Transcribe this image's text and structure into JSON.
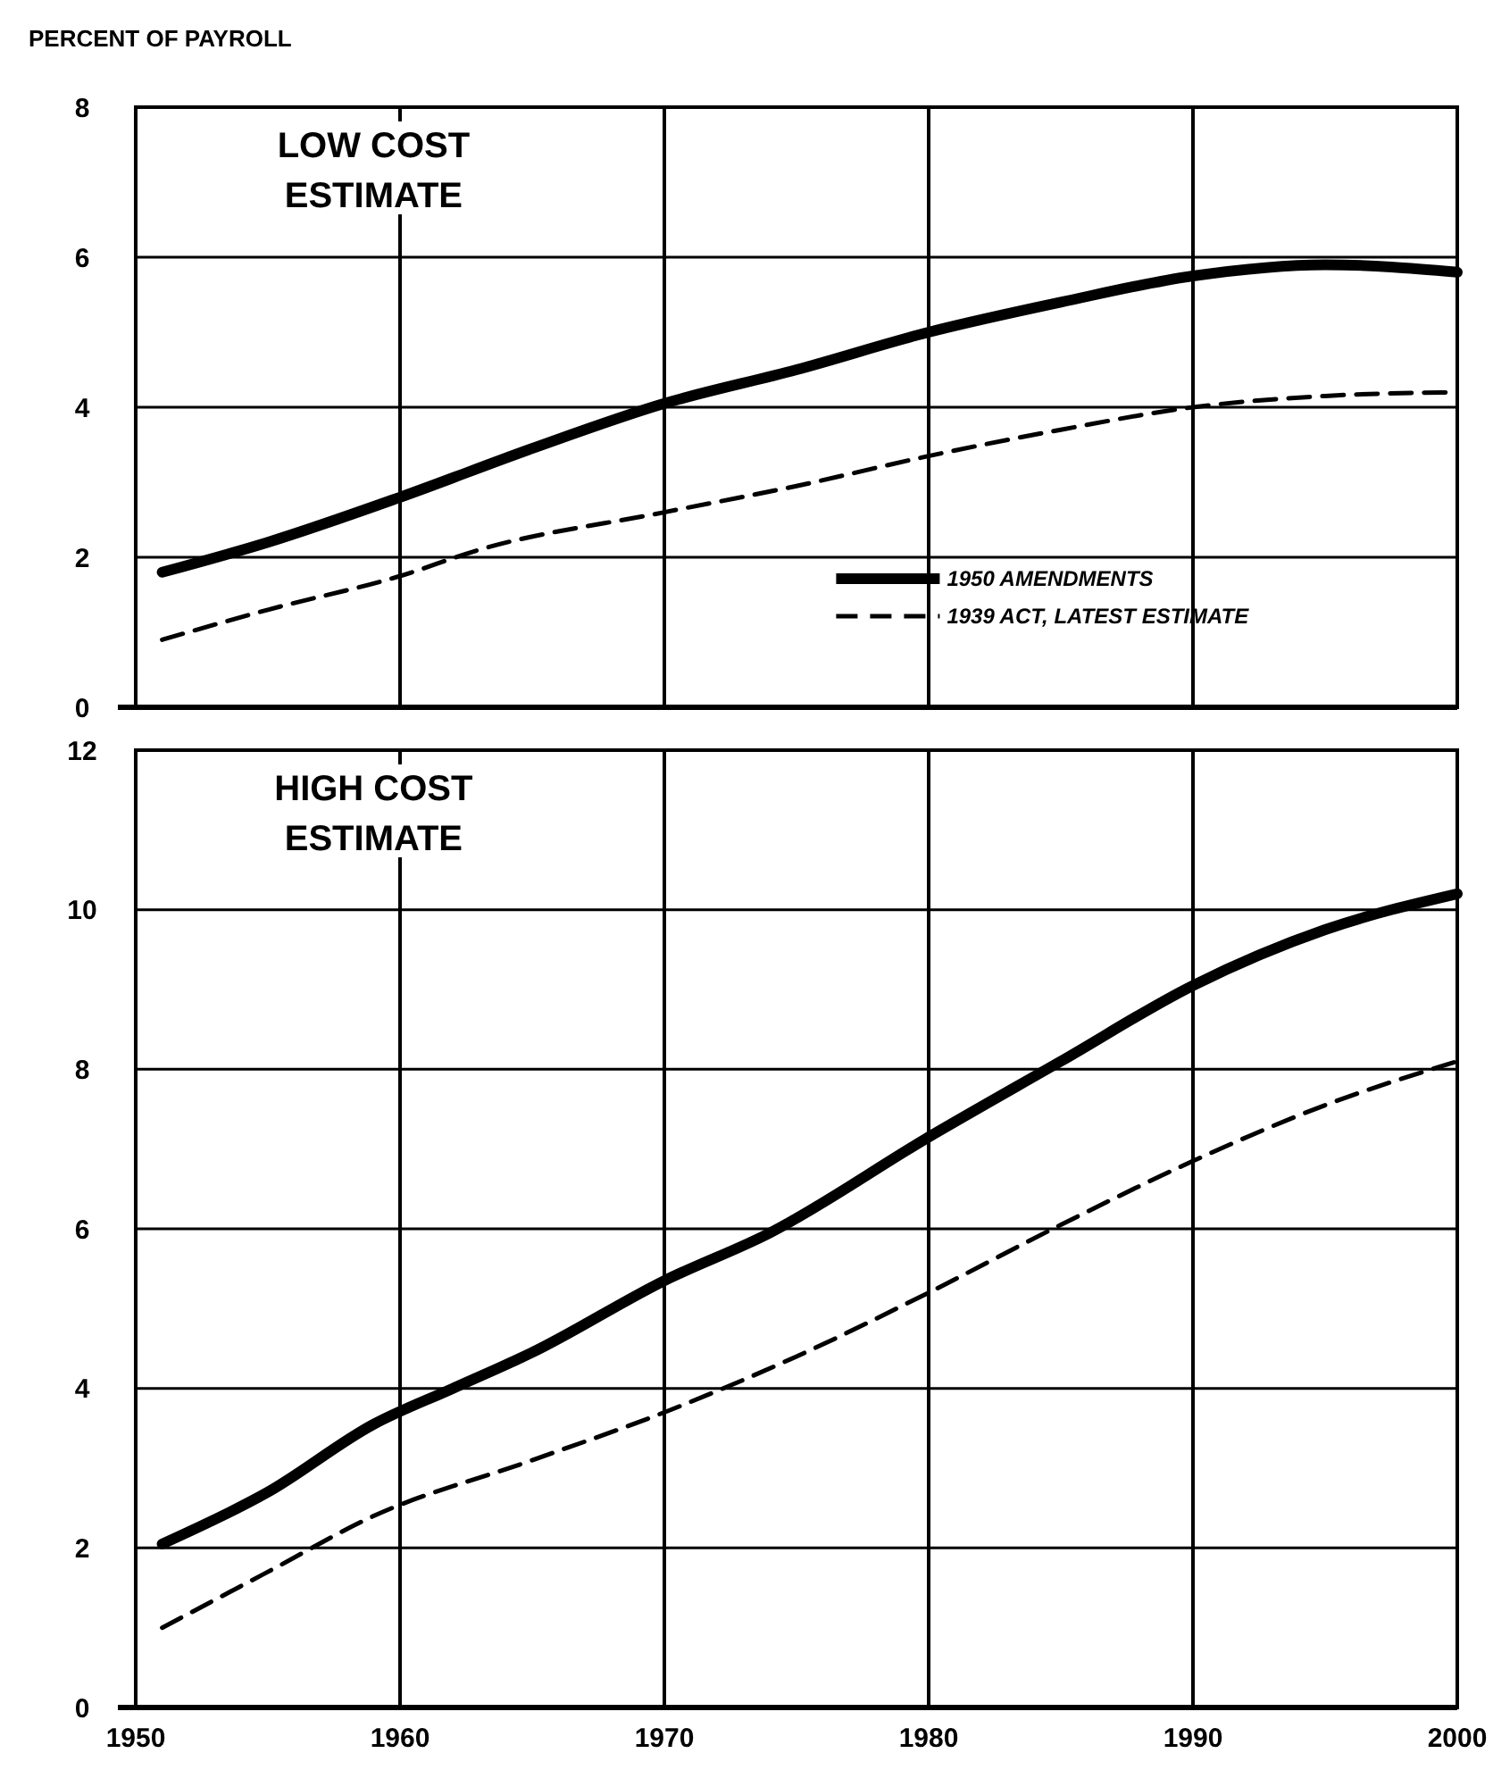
{
  "chart_data": [
    {
      "type": "line",
      "title": "LOW COST ESTIMATE",
      "ylabel": "PERCENT OF PAYROLL",
      "xlim": [
        1950,
        2000
      ],
      "xticks": [
        1950,
        1960,
        1970,
        1980,
        1990,
        2000
      ],
      "ylim": [
        0,
        8
      ],
      "yticks": [
        0,
        2,
        4,
        6,
        8
      ],
      "grid": true,
      "legend": "bottom right",
      "tick_labels": "y",
      "series": [
        {
          "name": "1950 AMENDMENTS",
          "color": "#000000",
          "line_style": "solid",
          "x": [
            1951,
            1955,
            1960,
            1965,
            1970,
            1975,
            1980,
            1985,
            1990,
            1995,
            2000
          ],
          "values": [
            1.8,
            2.2,
            2.8,
            3.45,
            4.05,
            4.5,
            5.0,
            5.4,
            5.75,
            5.9,
            5.8
          ]
        },
        {
          "name": "1939 ACT, LATEST ESTIMATE",
          "color": "#000000",
          "line_style": "dashed",
          "x": [
            1951,
            1955,
            1960,
            1963,
            1970,
            1975,
            1980,
            1985,
            1990,
            1995,
            2000
          ],
          "values": [
            0.9,
            1.3,
            1.75,
            2.1,
            2.6,
            2.95,
            3.35,
            3.7,
            4.0,
            4.15,
            4.2
          ]
        }
      ]
    },
    {
      "type": "line",
      "title": "HIGH COST ESTIMATE",
      "xlim": [
        1950,
        2000
      ],
      "xticks": [
        1950,
        1960,
        1970,
        1980,
        1990,
        2000
      ],
      "ylim": [
        0,
        12
      ],
      "yticks": [
        0,
        2,
        4,
        6,
        8,
        10,
        12
      ],
      "grid": true,
      "series": [
        {
          "color": "#000000",
          "line_style": "solid",
          "x": [
            1951,
            1955,
            1959,
            1962,
            1965,
            1970,
            1974,
            1980,
            1985,
            1990,
            1995,
            2000
          ],
          "values": [
            2.05,
            2.7,
            3.55,
            4.0,
            4.45,
            5.35,
            5.95,
            7.15,
            8.1,
            9.05,
            9.75,
            10.2
          ]
        },
        {
          "color": "#000000",
          "line_style": "dashed",
          "x": [
            1951,
            1955,
            1959,
            1965,
            1970,
            1975,
            1980,
            1985,
            1990,
            1995,
            2000
          ],
          "values": [
            1.0,
            1.7,
            2.4,
            3.1,
            3.7,
            4.4,
            5.2,
            6.05,
            6.85,
            7.55,
            8.1
          ]
        }
      ]
    }
  ]
}
